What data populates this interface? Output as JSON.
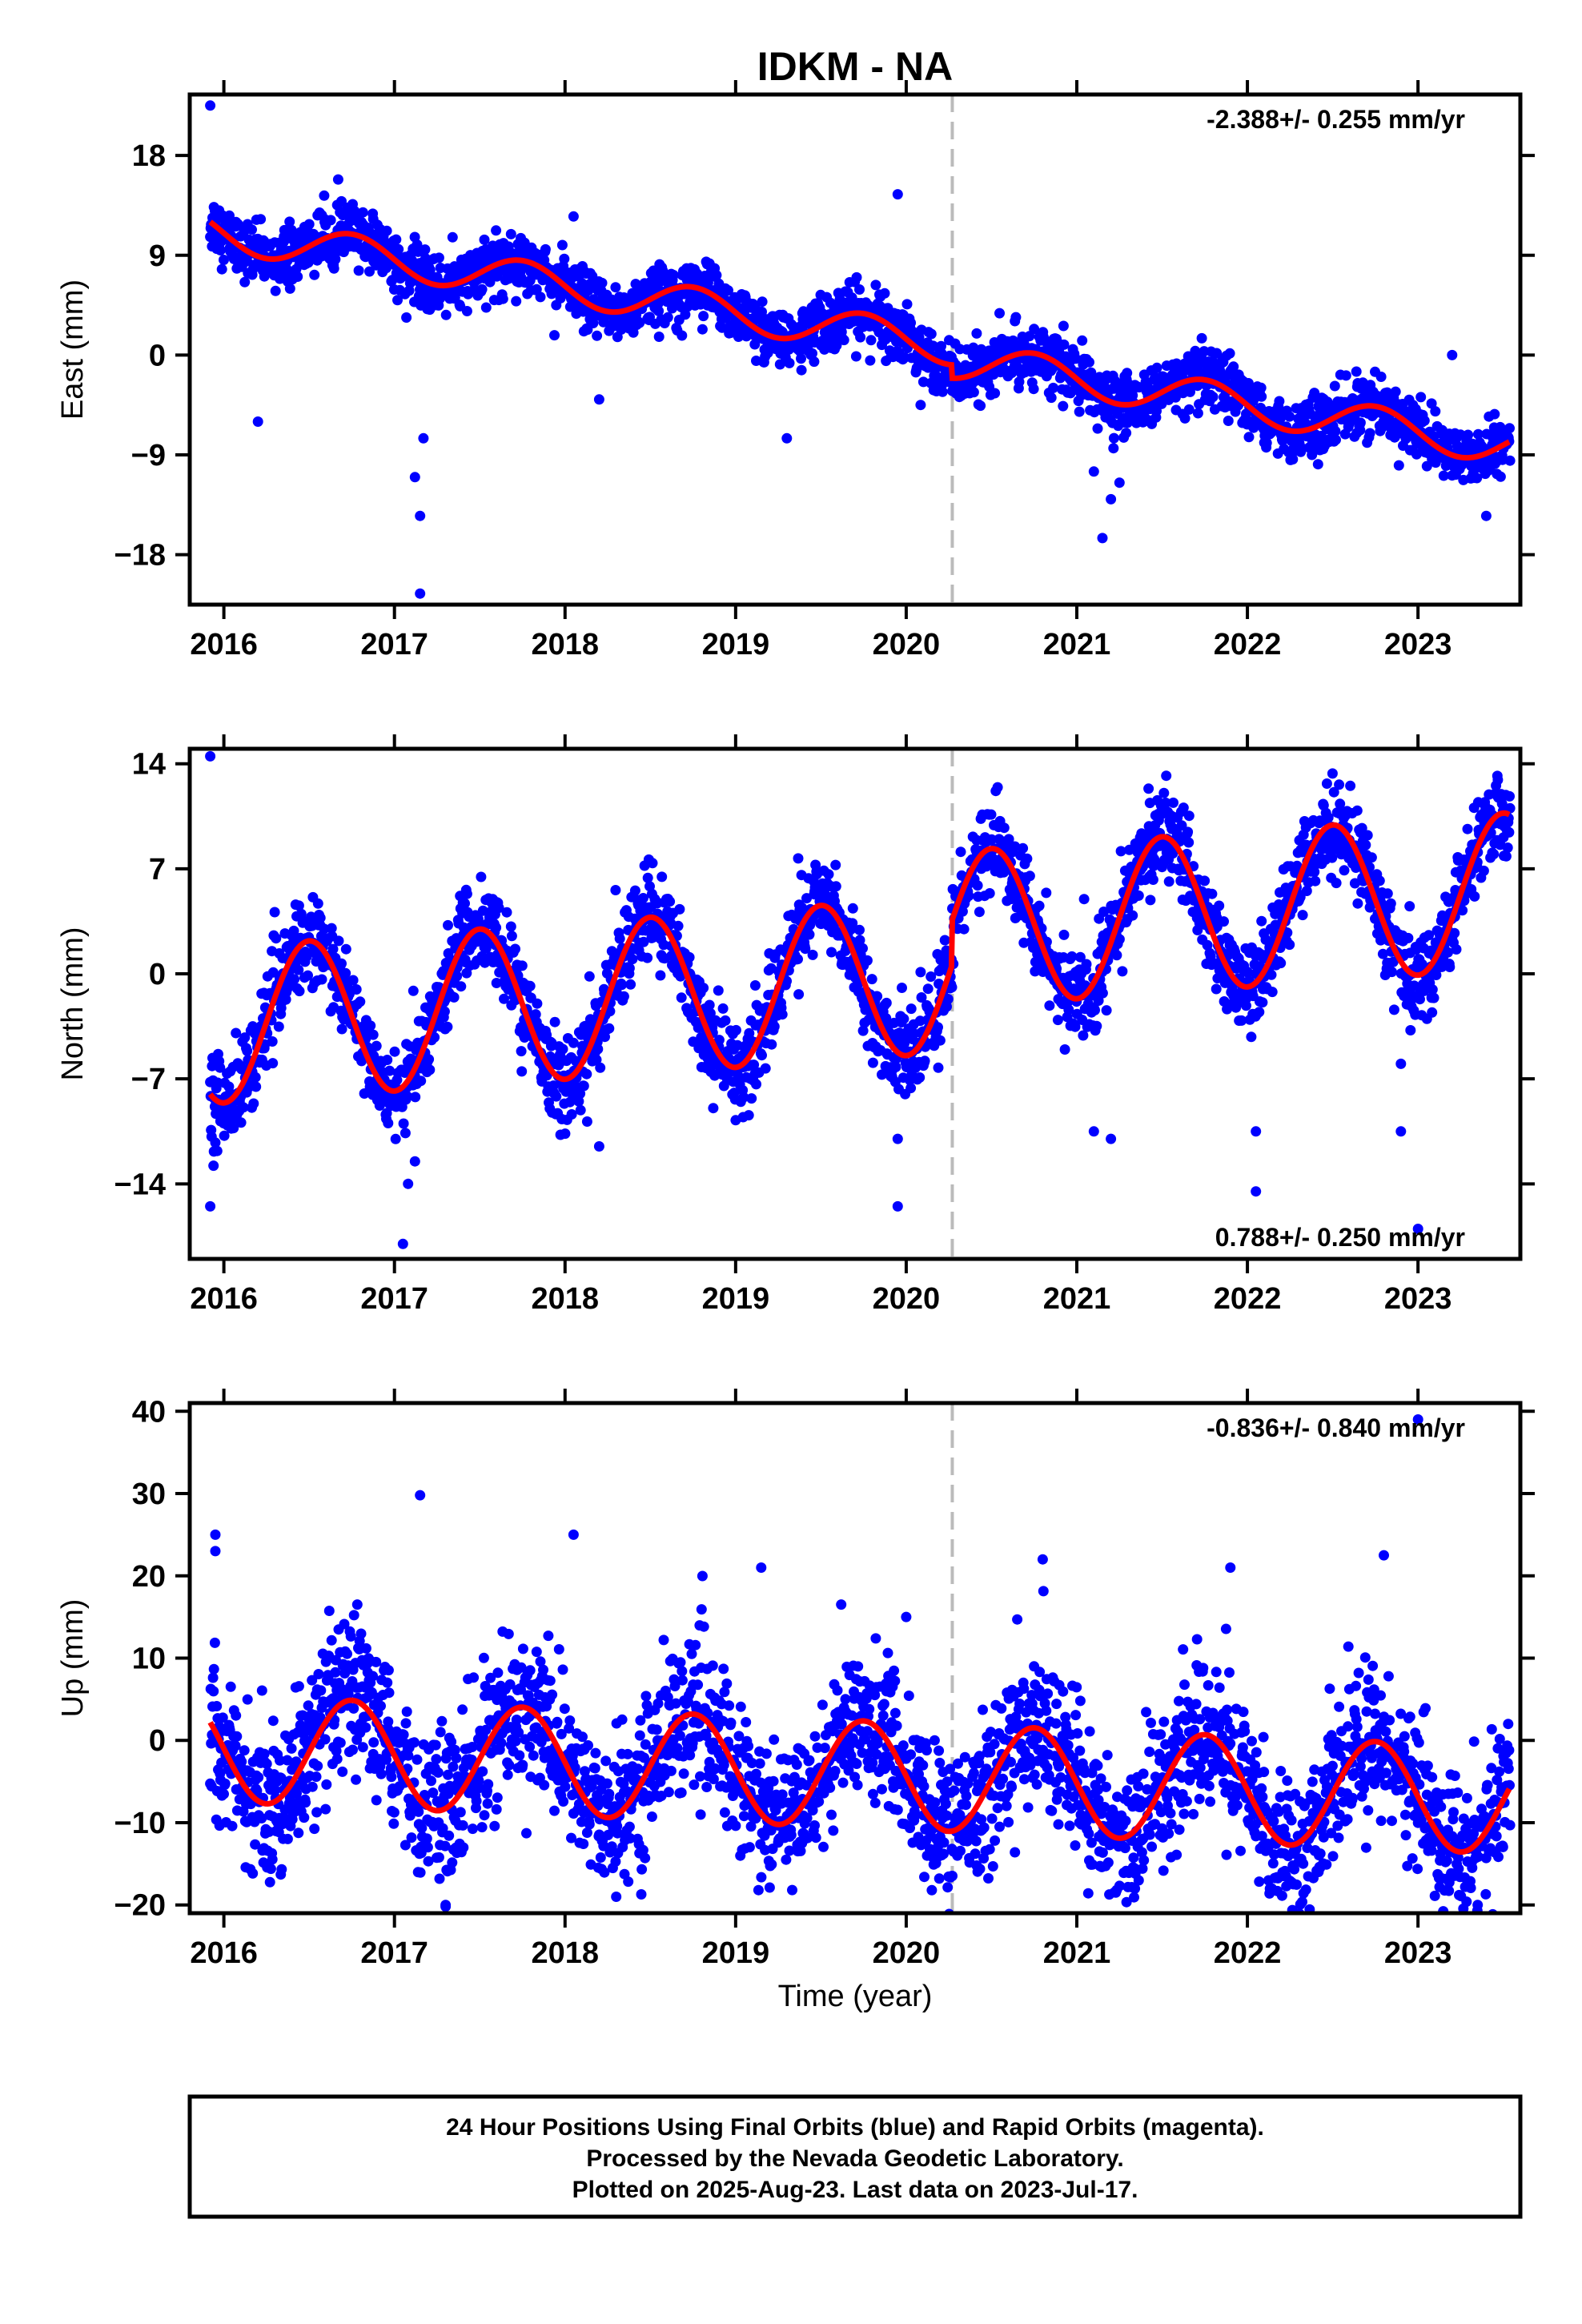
{
  "chart_data": {
    "type": "scatter",
    "title": "IDKM - NA",
    "xlabel": "Time (year)",
    "xlim": [
      2015.8,
      2023.6
    ],
    "x_ticks": [
      "2016",
      "2017",
      "2018",
      "2019",
      "2020",
      "2021",
      "2022",
      "2023"
    ],
    "event_line_x": 2020.27,
    "colors": {
      "final_orbits": "#0000ff",
      "fit": "#ff0000",
      "event_line": "#bbbbbb"
    },
    "panels": [
      {
        "ylabel": "East (mm)",
        "ylim": [
          -22.5,
          23.5
        ],
        "y_ticks": [
          18,
          9,
          0,
          -9,
          -18
        ],
        "rate": "-2.388+/- 0.255 mm/yr",
        "rate_position": "top-right",
        "trend_mm_yr": -2.388,
        "fit": {
          "offset_at_2016": 11.0,
          "annual_amplitude": 1.7,
          "annual_peak_year_fraction": 0.75,
          "step_at_event": -1.2
        },
        "scatter_spread": 1.3,
        "series": [
          {
            "name": "Final Orbits (blue)",
            "kind": "scatter"
          },
          {
            "name": "fit",
            "kind": "line"
          }
        ],
        "outliers": [
          [
            2015.92,
            22.5
          ],
          [
            2016.2,
            -6.0
          ],
          [
            2017.15,
            -21.5
          ],
          [
            2017.15,
            -14.5
          ],
          [
            2017.12,
            -11.0
          ],
          [
            2017.17,
            -7.5
          ],
          [
            2018.05,
            12.5
          ],
          [
            2018.2,
            -4.0
          ],
          [
            2019.3,
            -7.5
          ],
          [
            2019.95,
            14.5
          ],
          [
            2020.0,
            2.5
          ],
          [
            2021.15,
            -16.5
          ],
          [
            2021.2,
            -13.0
          ],
          [
            2021.1,
            -10.5
          ],
          [
            2021.25,
            -11.5
          ],
          [
            2023.2,
            0.0
          ],
          [
            2023.4,
            -14.5
          ]
        ]
      },
      {
        "ylabel": "North (mm)",
        "ylim": [
          -19,
          15
        ],
        "y_ticks": [
          14,
          7,
          0,
          -7,
          -14
        ],
        "rate": "0.788+/- 0.250 mm/yr",
        "rate_position": "bottom-right",
        "trend_mm_yr": 0.788,
        "fit": {
          "offset_at_2016": -3.4,
          "annual_amplitude": 5.2,
          "annual_peak_year_fraction": 0.5,
          "step_at_event": 3.0
        },
        "scatter_spread": 1.5,
        "series": [
          {
            "name": "Final Orbits (blue)",
            "kind": "scatter"
          },
          {
            "name": "fit",
            "kind": "line"
          }
        ],
        "outliers": [
          [
            2015.92,
            14.5
          ],
          [
            2015.92,
            -15.5
          ],
          [
            2017.05,
            -18.0
          ],
          [
            2017.08,
            -14.0
          ],
          [
            2017.12,
            -12.5
          ],
          [
            2018.2,
            -11.5
          ],
          [
            2019.95,
            -11.0
          ],
          [
            2019.95,
            -15.5
          ],
          [
            2021.1,
            -10.5
          ],
          [
            2021.2,
            -11.0
          ],
          [
            2022.05,
            -10.5
          ],
          [
            2022.05,
            -14.5
          ],
          [
            2022.9,
            -6.0
          ],
          [
            2022.9,
            -10.5
          ],
          [
            2023.0,
            -17.0
          ]
        ]
      },
      {
        "ylabel": "Up (mm)",
        "ylim": [
          -21,
          41
        ],
        "y_ticks": [
          40,
          30,
          20,
          10,
          0,
          -10,
          -20
        ],
        "rate": "-0.836+/- 0.840 mm/yr",
        "rate_position": "top-right",
        "trend_mm_yr": -0.836,
        "fit": {
          "offset_at_2016": -1.0,
          "annual_amplitude": 6.5,
          "annual_peak_year_fraction": 0.75,
          "step_at_event": 0.0
        },
        "scatter_spread": 4.5,
        "series": [
          {
            "name": "Final Orbits (blue)",
            "kind": "scatter"
          },
          {
            "name": "fit",
            "kind": "line"
          }
        ],
        "outliers": [
          [
            2015.95,
            25.0
          ],
          [
            2015.95,
            23.0
          ],
          [
            2017.15,
            29.8
          ],
          [
            2018.05,
            25.0
          ],
          [
            2019.15,
            21.0
          ],
          [
            2020.8,
            22.0
          ],
          [
            2021.9,
            21.0
          ],
          [
            2022.8,
            22.5
          ],
          [
            2023.0,
            39.0
          ],
          [
            2023.35,
            -20.0
          ],
          [
            2017.3,
            -20.0
          ],
          [
            2020.0,
            15.0
          ],
          [
            2020.3,
            -14.0
          ],
          [
            2018.3,
            -19.0
          ]
        ]
      }
    ],
    "footer": [
      "24 Hour Positions Using Final Orbits (blue) and Rapid Orbits (magenta).",
      "Processed by the Nevada Geodetic Laboratory.",
      "Plotted on 2025-Aug-23. Last data on 2023-Jul-17."
    ]
  }
}
